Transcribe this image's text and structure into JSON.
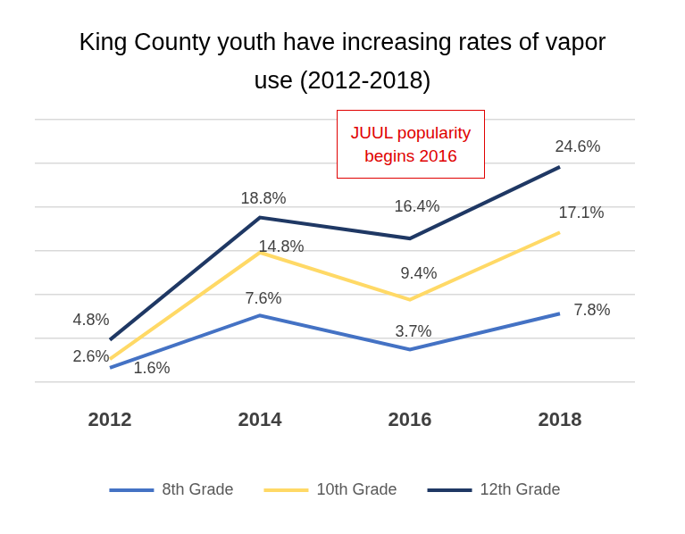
{
  "chart_data": {
    "type": "line",
    "title": "King County youth have increasing rates of vapor use (2012-2018)",
    "categories": [
      "2012",
      "2014",
      "2016",
      "2018"
    ],
    "series": [
      {
        "name": "8th Grade",
        "color": "#4472c4",
        "values": [
          1.6,
          7.6,
          3.7,
          7.8
        ],
        "value_labels": [
          "1.6%",
          "7.6%",
          "3.7%",
          "7.8%"
        ]
      },
      {
        "name": "10th Grade",
        "color": "#ffd966",
        "values": [
          2.6,
          14.8,
          9.4,
          17.1
        ],
        "value_labels": [
          "2.6%",
          "14.8%",
          "9.4%",
          "17.1%"
        ]
      },
      {
        "name": "12th Grade",
        "color": "#1f3864",
        "values": [
          4.8,
          18.8,
          16.4,
          24.6
        ],
        "value_labels": [
          "4.8%",
          "18.8%",
          "16.4%",
          "24.6%"
        ]
      }
    ],
    "ylim": [
      0,
      30
    ],
    "yticks": [
      0,
      5,
      10,
      15,
      20,
      25,
      30
    ],
    "grid": true,
    "legend": "bottom",
    "data_labels": true,
    "tick_labels": "x",
    "annotations": [
      "JUUL popularity begins 2016"
    ]
  }
}
